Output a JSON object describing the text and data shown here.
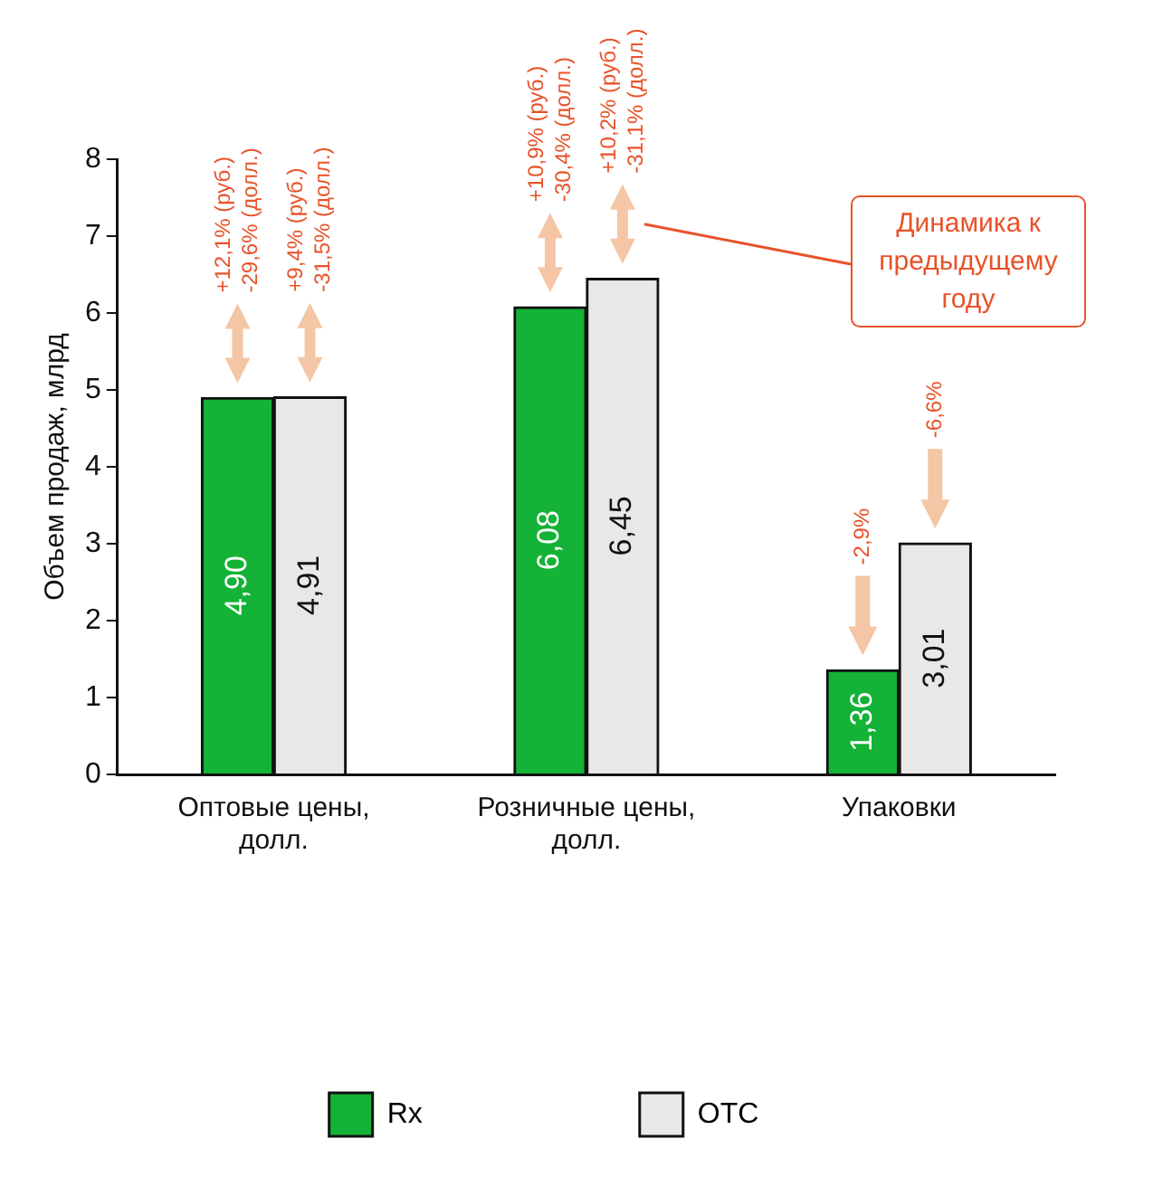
{
  "chart_data": {
    "type": "bar",
    "categories": [
      "Оптовые цены, долл.",
      "Розничные цены, долл.",
      "Упаковки"
    ],
    "series": [
      {
        "name": "Rx",
        "color": "#14b236",
        "values": [
          4.9,
          6.08,
          1.36
        ]
      },
      {
        "name": "OTC",
        "color": "#e8e8e8",
        "values": [
          4.91,
          6.45,
          3.01
        ]
      }
    ],
    "ylabel": "Объем продаж, млрд",
    "ylim": [
      0,
      8
    ],
    "yticks": [
      0,
      1,
      2,
      3,
      4,
      5,
      6,
      7,
      8
    ],
    "grid": false,
    "legend": "bottom",
    "value_labels": [
      [
        "4,90",
        "6,08",
        "1,36"
      ],
      [
        "4,91",
        "6,45",
        "3,01"
      ]
    ],
    "annotations": [
      "Динамика к предыдущему году",
      "+12,1% (руб.)\n-29,6% (долл.)",
      "+9,4% (руб.)\n-31,5% (долл.)",
      "+10,9% (руб.)\n-30,4% (долл.)",
      "+10,2% (руб.)\n-31,1% (долл.)",
      "-2,9%",
      "-6,6%"
    ]
  }
}
